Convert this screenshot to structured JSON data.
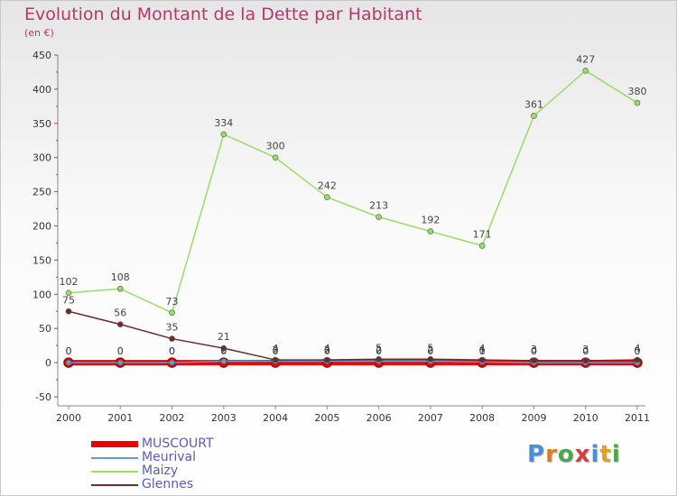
{
  "title": "Evolution du Montant de la Dette par Habitant",
  "subtitle": "(en €)",
  "logo": {
    "text": "Proxiti",
    "letter_colors": [
      "#4a8fd4",
      "#e07a20",
      "#4aa84a",
      "#d04040",
      "#4a8fd4",
      "#e0a020",
      "#4aa84a"
    ]
  },
  "chart_data": {
    "type": "line",
    "title": "Evolution du Montant de la Dette par Habitant",
    "ylabel": "(en €)",
    "xlabel": "",
    "ylim": [
      -50,
      450
    ],
    "yticks": [
      -50,
      0,
      50,
      100,
      150,
      200,
      250,
      300,
      350,
      400,
      450
    ],
    "categories": [
      "2000",
      "2001",
      "2002",
      "2003",
      "2004",
      "2005",
      "2006",
      "2007",
      "2008",
      "2009",
      "2010",
      "2011"
    ],
    "grid": false,
    "legend": "bottom-left",
    "series": [
      {
        "name": "MUSCOURT",
        "color": "#ee0000",
        "emphasis": "thick",
        "values": [
          0,
          0,
          0,
          0,
          0,
          0,
          0,
          0,
          0,
          0,
          0,
          0
        ],
        "labels": [
          "0",
          "0",
          "0",
          "0",
          "0",
          "0",
          "0",
          "0",
          "0",
          "0",
          "0",
          "0"
        ]
      },
      {
        "name": "Meurival",
        "color": "#6699cc",
        "emphasis": "normal",
        "values": [
          0,
          0,
          0,
          2,
          2,
          2,
          2,
          2,
          1,
          0,
          0,
          0
        ],
        "labels": [
          "0",
          "0",
          "0",
          "2",
          "2",
          "2",
          "2",
          "2",
          "1",
          "0",
          "0",
          "0"
        ]
      },
      {
        "name": "Maizy",
        "color": "#99dd66",
        "emphasis": "normal",
        "values": [
          102,
          108,
          73,
          334,
          300,
          242,
          213,
          192,
          171,
          361,
          427,
          380
        ],
        "labels": [
          "102",
          "108",
          "73",
          "334",
          "300",
          "242",
          "213",
          "192",
          "171",
          "361",
          "427",
          "380"
        ]
      },
      {
        "name": "Glennes",
        "color": "#6b2c2c",
        "emphasis": "normal",
        "values": [
          75,
          56,
          35,
          21,
          4,
          4,
          5,
          5,
          4,
          3,
          3,
          4
        ],
        "labels": [
          "75",
          "56",
          "35",
          "21",
          "4",
          "4",
          "5",
          "5",
          "4",
          "3",
          "3",
          "4"
        ]
      }
    ]
  }
}
